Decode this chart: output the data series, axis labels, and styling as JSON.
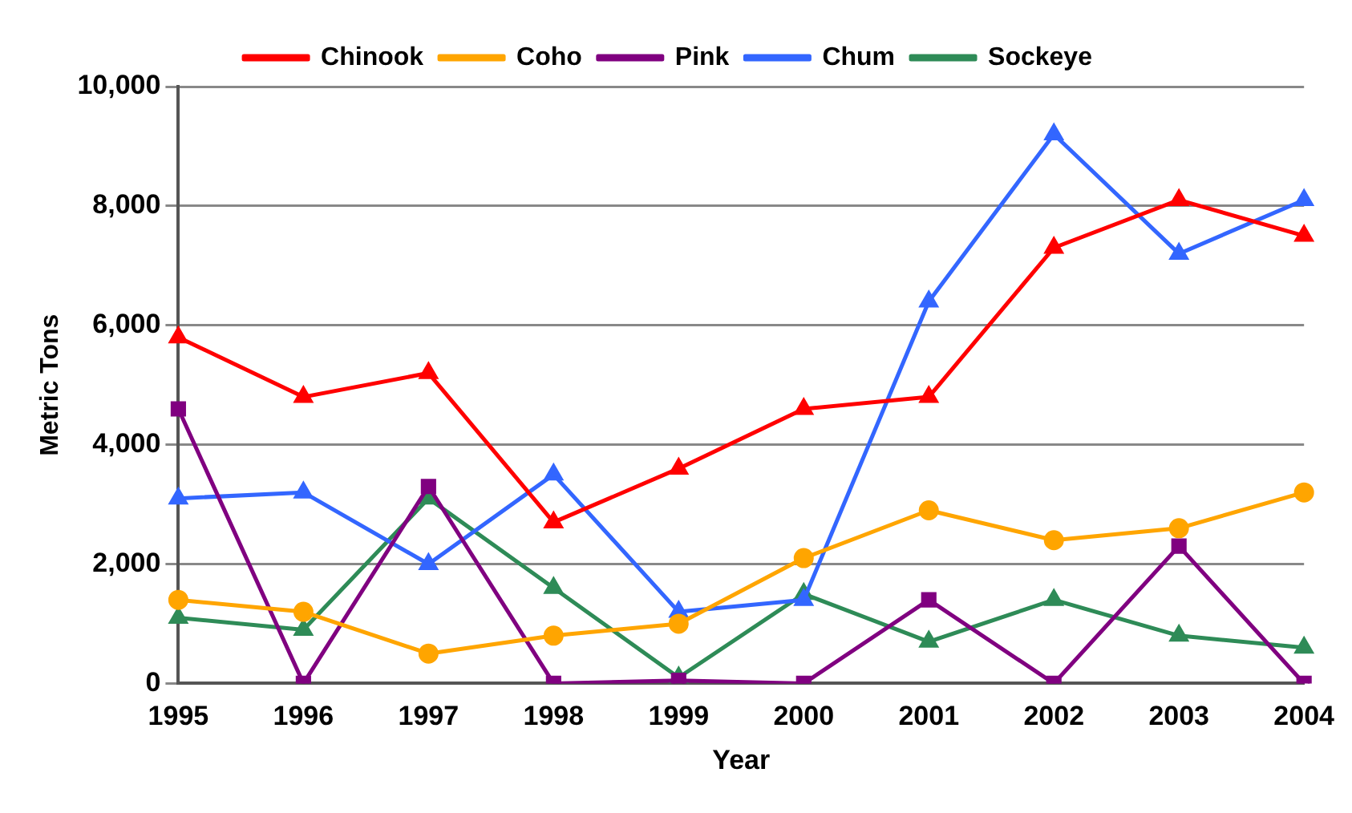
{
  "chart_data": {
    "type": "line",
    "xlabel": "Year",
    "ylabel": "Metric Tons",
    "categories": [
      "1995",
      "1996",
      "1997",
      "1998",
      "1999",
      "2000",
      "2001",
      "2002",
      "2003",
      "2004"
    ],
    "series": [
      {
        "name": "Chinook",
        "color": "#ff0000",
        "marker": "triangle",
        "values": [
          5800,
          4800,
          5200,
          2700,
          3600,
          4600,
          4800,
          7300,
          8100,
          7500
        ]
      },
      {
        "name": "Coho",
        "color": "#ffa500",
        "marker": "circle",
        "values": [
          1400,
          1200,
          500,
          800,
          1000,
          2100,
          2900,
          2400,
          2600,
          3200
        ]
      },
      {
        "name": "Pink",
        "color": "#800080",
        "marker": "square",
        "values": [
          4600,
          0,
          3300,
          0,
          50,
          0,
          1400,
          0,
          2300,
          0
        ]
      },
      {
        "name": "Chum",
        "color": "#3366ff",
        "marker": "triangle",
        "values": [
          3100,
          3200,
          2000,
          3500,
          1200,
          1400,
          6400,
          9200,
          7200,
          8100
        ]
      },
      {
        "name": "Sockeye",
        "color": "#2e8b57",
        "marker": "triangle",
        "values": [
          1100,
          900,
          3100,
          1600,
          100,
          1500,
          700,
          1400,
          800,
          600
        ]
      }
    ],
    "ylim": [
      0,
      10000
    ],
    "yticks": [
      {
        "value": 0,
        "label": "0"
      },
      {
        "value": 2000,
        "label": "2,000"
      },
      {
        "value": 4000,
        "label": "4,000"
      },
      {
        "value": 6000,
        "label": "6,000"
      },
      {
        "value": 8000,
        "label": "8,000"
      },
      {
        "value": 10000,
        "label": "10,000"
      }
    ],
    "grid": "y",
    "legend": "top",
    "line_style": "solid"
  }
}
